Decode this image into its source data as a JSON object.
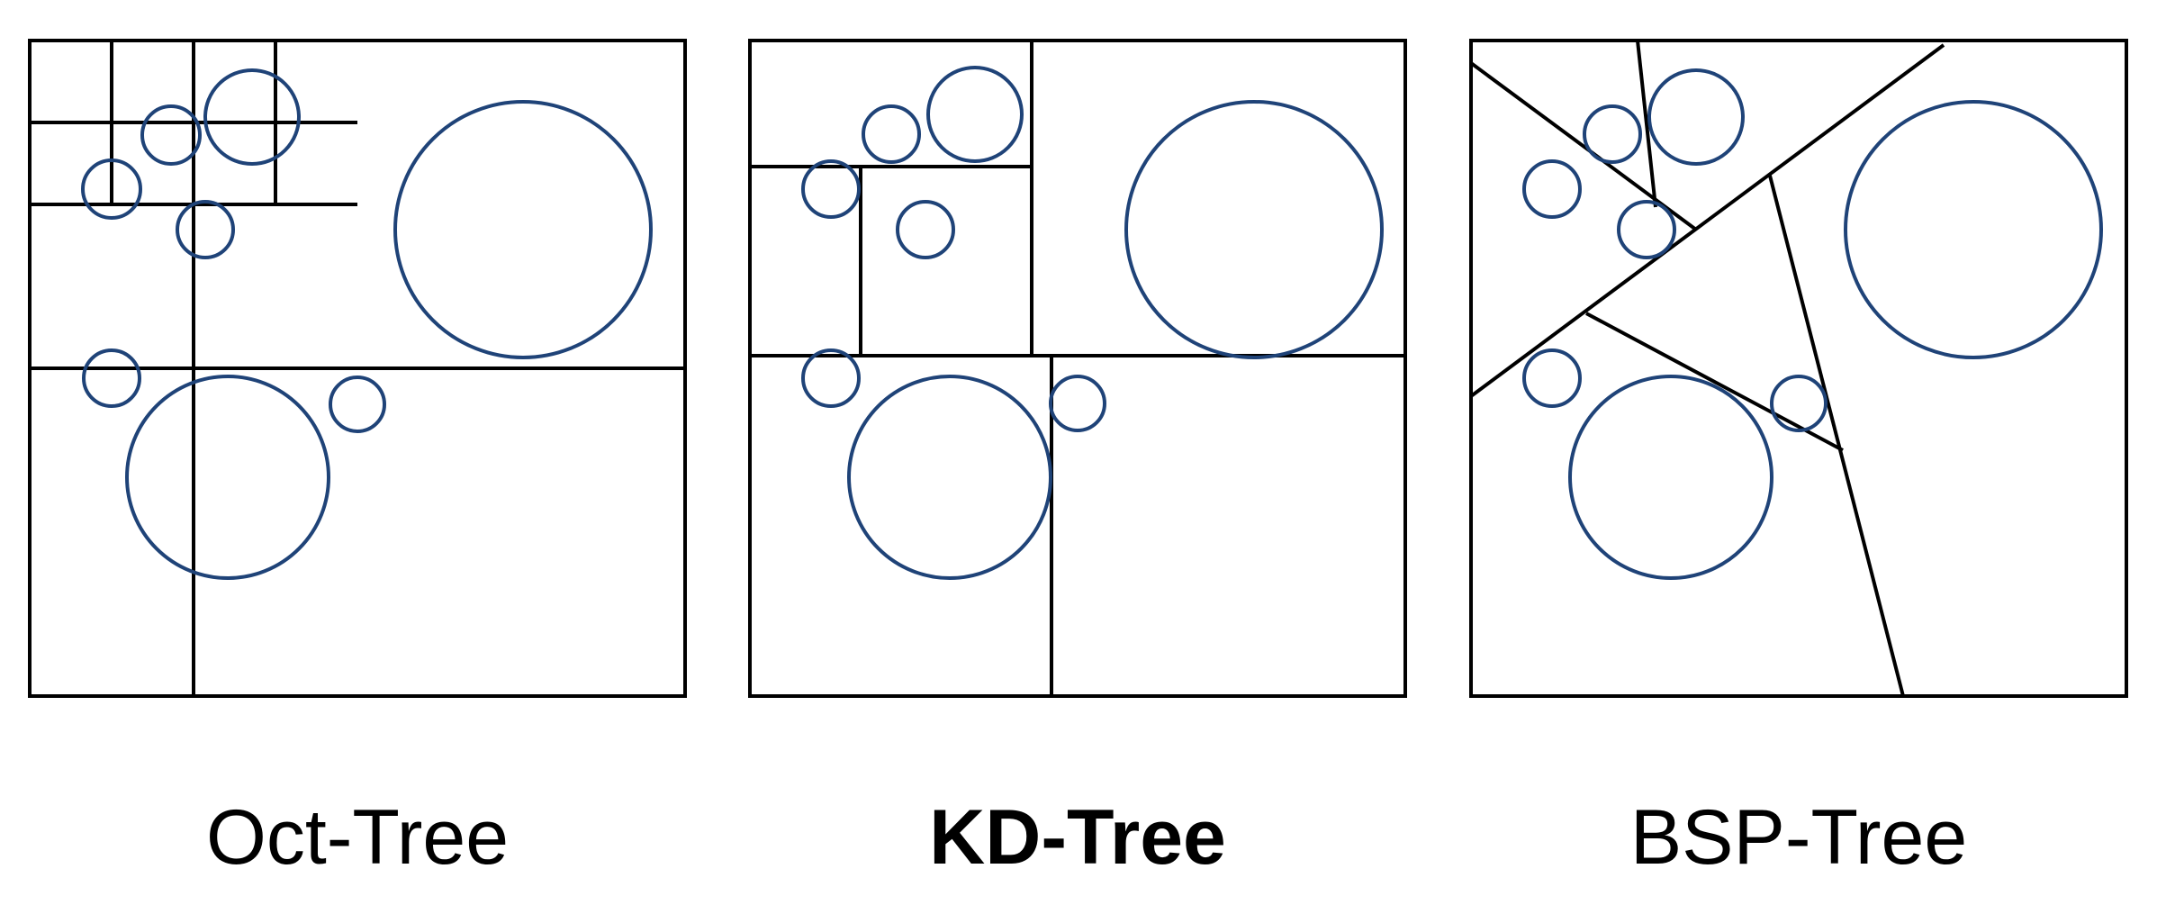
{
  "colors": {
    "frame": "#000000",
    "circle": "#1f4378",
    "background": "#ffffff"
  },
  "panels": [
    {
      "id": "oct",
      "label": "Oct-Tree"
    },
    {
      "id": "kd",
      "label": "KD-Tree"
    },
    {
      "id": "bsp",
      "label": "BSP-Tree"
    }
  ]
}
